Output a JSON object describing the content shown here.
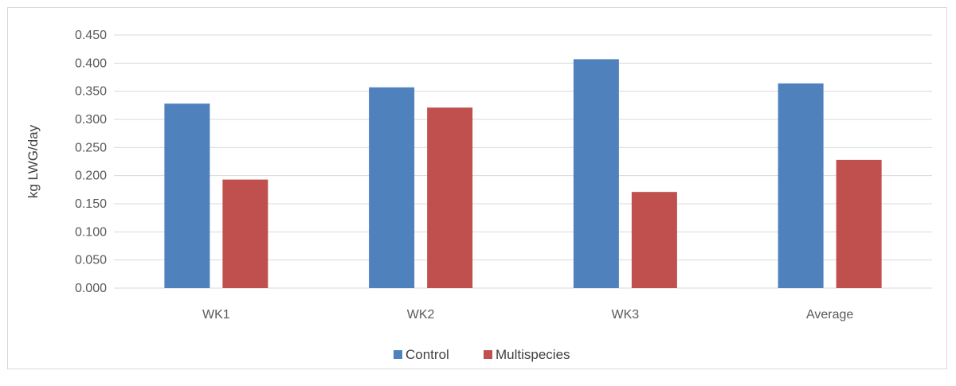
{
  "chart_data": {
    "type": "bar",
    "ylabel": "kg LWG/day",
    "xlabel": "",
    "categories": [
      "WK1",
      "WK2",
      "WK3",
      "Average"
    ],
    "series": [
      {
        "name": "Control",
        "color": "#4f81bd",
        "values": [
          0.328,
          0.357,
          0.407,
          0.364
        ]
      },
      {
        "name": "Multispecies",
        "color": "#c0504d",
        "values": [
          0.193,
          0.321,
          0.171,
          0.228
        ]
      }
    ],
    "ylim": [
      0,
      0.45
    ],
    "yticks": [
      "0.000",
      "0.050",
      "0.100",
      "0.150",
      "0.200",
      "0.250",
      "0.300",
      "0.350",
      "0.400",
      "0.450"
    ],
    "grid": true,
    "legend_position": "bottom"
  }
}
